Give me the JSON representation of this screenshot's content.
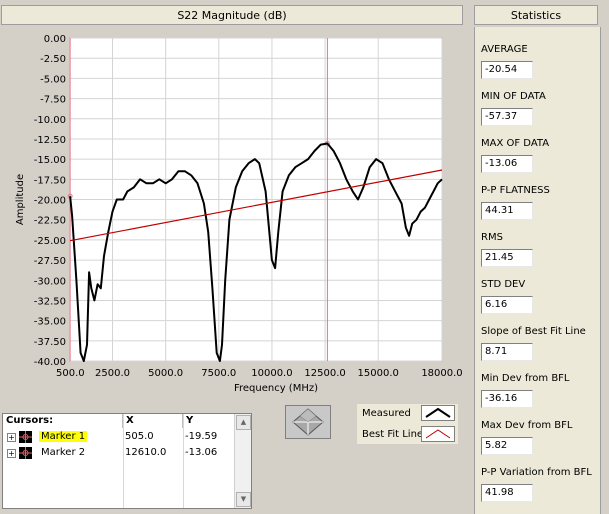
{
  "plot": {
    "title": "S22 Magnitude (dB)"
  },
  "chart_data": {
    "type": "line",
    "title": "S22 Magnitude (dB)",
    "xlabel": "Frequency (MHz)",
    "ylabel": "Amplitude",
    "xlim": [
      500,
      18000
    ],
    "ylim": [
      -40,
      0
    ],
    "x_ticks": [
      "500.0",
      "2500.0",
      "5000.0",
      "7500.0",
      "10000.0",
      "12500.0",
      "15000.0",
      "18000.0"
    ],
    "x_tick_values": [
      500,
      2500,
      5000,
      7500,
      10000,
      12500,
      15000,
      18000
    ],
    "y_ticks": [
      "0.00",
      "-2.50",
      "-5.00",
      "-7.50",
      "-10.00",
      "-12.50",
      "-15.00",
      "-17.50",
      "-20.00",
      "-22.50",
      "-25.00",
      "-27.50",
      "-30.00",
      "-32.50",
      "-35.00",
      "-37.50",
      "-40.00"
    ],
    "y_tick_values": [
      0,
      -2.5,
      -5,
      -7.5,
      -10,
      -12.5,
      -15,
      -17.5,
      -20,
      -22.5,
      -25,
      -27.5,
      -30,
      -32.5,
      -35,
      -37.5,
      -40
    ],
    "grid": true,
    "series": [
      {
        "name": "Measured",
        "color": "#000000",
        "x": [
          505,
          600,
          800,
          1000,
          1150,
          1300,
          1400,
          1500,
          1650,
          1800,
          1950,
          2100,
          2300,
          2500,
          2700,
          3000,
          3200,
          3500,
          3800,
          4100,
          4400,
          4700,
          5000,
          5300,
          5600,
          5900,
          6200,
          6500,
          6800,
          7000,
          7200,
          7400,
          7550,
          7650,
          7800,
          8000,
          8300,
          8600,
          8900,
          9200,
          9400,
          9700,
          10000,
          10150,
          10300,
          10500,
          10800,
          11100,
          11400,
          11700,
          12000,
          12300,
          12610,
          12900,
          13200,
          13500,
          13800,
          14050,
          14300,
          14600,
          14900,
          15200,
          15500,
          15800,
          16100,
          16300,
          16450,
          16600,
          16800,
          17000,
          17200,
          17400,
          17600,
          17800,
          18000
        ],
        "y": [
          -19.59,
          -22.0,
          -30.0,
          -39.0,
          -40.0,
          -38.0,
          -29.0,
          -31.0,
          -32.5,
          -30.5,
          -31.0,
          -27.0,
          -24.0,
          -21.5,
          -20.0,
          -20.0,
          -19.0,
          -18.5,
          -17.5,
          -18.0,
          -18.0,
          -17.5,
          -18.0,
          -17.5,
          -16.5,
          -16.5,
          -17.0,
          -18.0,
          -20.5,
          -24.0,
          -31.0,
          -39.0,
          -40.0,
          -38.0,
          -30.0,
          -22.5,
          -18.5,
          -16.5,
          -15.5,
          -15.0,
          -15.5,
          -19.0,
          -27.5,
          -28.5,
          -24.0,
          -19.0,
          -17.0,
          -16.0,
          -15.5,
          -15.0,
          -14.0,
          -13.2,
          -13.06,
          -14.0,
          -15.5,
          -17.5,
          -19.0,
          -20.0,
          -18.5,
          -16.0,
          -15.0,
          -15.5,
          -17.5,
          -19.0,
          -20.5,
          -23.5,
          -24.5,
          -23.0,
          -22.5,
          -21.5,
          -21.0,
          -20.0,
          -19.0,
          -18.0,
          -17.5
        ]
      },
      {
        "name": "Best Fit Line",
        "color": "#c00000",
        "x": [
          505,
          18000
        ],
        "y": [
          -25.1,
          -16.35
        ]
      }
    ],
    "cursors": [
      {
        "name": "Marker 1",
        "x": 505.0,
        "y": -19.59
      },
      {
        "name": "Marker 2",
        "x": 12610.0,
        "y": -13.06
      }
    ],
    "cursor_color": "#e8748a"
  },
  "statistics": {
    "title": "Statistics",
    "items": [
      {
        "label": "AVERAGE",
        "value": "-20.54"
      },
      {
        "label": "MIN OF DATA",
        "value": "-57.37"
      },
      {
        "label": "MAX OF DATA",
        "value": "-13.06"
      },
      {
        "label": "P-P FLATNESS",
        "value": "44.31"
      },
      {
        "label": "RMS",
        "value": "21.45"
      },
      {
        "label": "STD DEV",
        "value": "6.16"
      },
      {
        "label": "Slope of Best Fit Line",
        "value": "8.71"
      },
      {
        "label": "Min Dev from BFL",
        "value": "-36.16"
      },
      {
        "label": "Max Dev from BFL",
        "value": "5.82"
      },
      {
        "label": "P-P Variation from BFL",
        "value": "41.98"
      }
    ]
  },
  "cursors_table": {
    "headers": [
      "Cursors:",
      "X",
      "Y"
    ],
    "rows": [
      {
        "name": "Marker 1",
        "x": "505.0",
        "y": "-19.59",
        "expander": "+"
      },
      {
        "name": "Marker 2",
        "x": "12610.0",
        "y": "-13.06",
        "expander": "+"
      }
    ],
    "highlight_color": "#ffff00"
  },
  "legend": {
    "items": [
      {
        "label": "Measured",
        "icon": "measured-line-icon"
      },
      {
        "label": "Best Fit Line",
        "icon": "best-fit-line-icon"
      }
    ]
  },
  "navigation": {
    "icon": "pan-navigation-icon"
  }
}
